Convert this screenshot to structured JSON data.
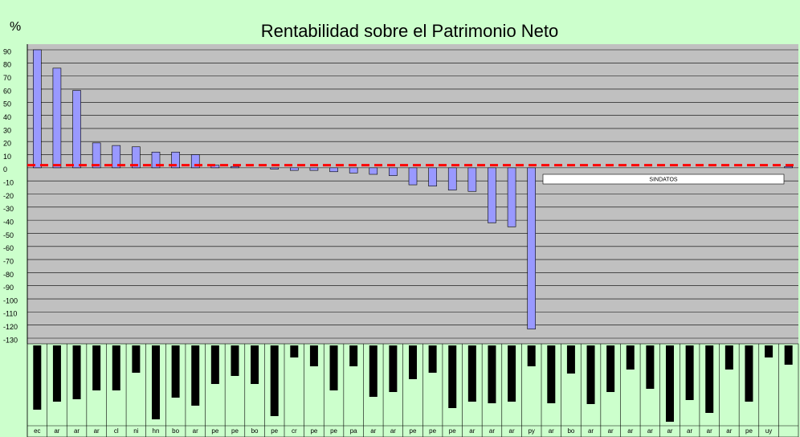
{
  "chart_data": {
    "type": "bar",
    "title": "Rentabilidad sobre el Patrimonio Neto",
    "y_label": "%",
    "categories": [
      "ec",
      "ar",
      "ar",
      "ar",
      "cl",
      "ni",
      "hn",
      "bo",
      "ar",
      "pe",
      "pe",
      "bo",
      "pe",
      "cr",
      "pe",
      "pe",
      "pa",
      "ar",
      "ar",
      "pe",
      "pe",
      "pe",
      "ar",
      "ar",
      "ar",
      "py",
      "ar",
      "bo",
      "ar",
      "ar",
      "ar",
      "ar",
      "ar",
      "ar",
      "ar",
      "ar",
      "pe",
      "uy",
      null
    ],
    "values": [
      90,
      76,
      59,
      19,
      17,
      16,
      12,
      12,
      10,
      2,
      1,
      0,
      -1,
      -2,
      -2,
      -3,
      -4,
      -5,
      -6,
      -13,
      -14,
      -17,
      -18,
      -42,
      -45,
      -123,
      null,
      null,
      null,
      null,
      null,
      null,
      null,
      null,
      null,
      null,
      null,
      null,
      1
    ],
    "color": "#9999ff",
    "ylim": [
      -130,
      90
    ],
    "yticks": [
      90,
      80,
      70,
      60,
      50,
      40,
      30,
      20,
      10,
      0,
      -10,
      -20,
      -30,
      -40,
      -50,
      -60,
      -70,
      -80,
      -90,
      -100,
      -110,
      -120,
      -130
    ],
    "grid": true,
    "reference_line": {
      "value": 2,
      "color": "#ff0000"
    },
    "annotation": "SINDATOS",
    "lower_panel": {
      "values": [
        80,
        70,
        67,
        56,
        56,
        34,
        92,
        65,
        75,
        48,
        38,
        48,
        88,
        15,
        26,
        56,
        26,
        64,
        58,
        42,
        34,
        78,
        70,
        72,
        70,
        26,
        72,
        35,
        73,
        58,
        30,
        54,
        95,
        68,
        84,
        30,
        70,
        15,
        24
      ],
      "ylim": [
        0,
        100
      ],
      "color": "#000000"
    }
  }
}
